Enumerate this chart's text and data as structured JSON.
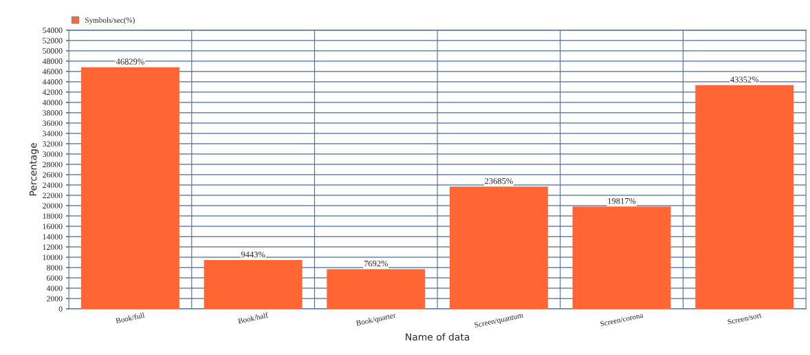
{
  "chart_data": {
    "type": "bar",
    "xlabel": "Name of data",
    "ylabel": "Percentage",
    "categories": [
      "Book/full",
      "Book/half",
      "Book/quarter",
      "Screen/quantum",
      "Screen/corona",
      "Screen/sort"
    ],
    "series": [
      {
        "name": "Symbols/sec(%)",
        "color": "#ff6633",
        "values": [
          46829,
          9443,
          7692,
          23685,
          19817,
          43352
        ]
      }
    ],
    "value_labels": [
      "46829%",
      "9443%",
      "7692%",
      "23685%",
      "19817%",
      "43352%"
    ],
    "ylim": [
      0,
      54000
    ],
    "yticks": [
      0,
      2000,
      4000,
      6000,
      8000,
      10000,
      12000,
      14000,
      16000,
      18000,
      20000,
      22000,
      24000,
      26000,
      28000,
      30000,
      32000,
      34000,
      36000,
      38000,
      40000,
      42000,
      44000,
      46000,
      48000,
      50000,
      52000,
      54000
    ],
    "grid": true,
    "legend": "top left"
  }
}
